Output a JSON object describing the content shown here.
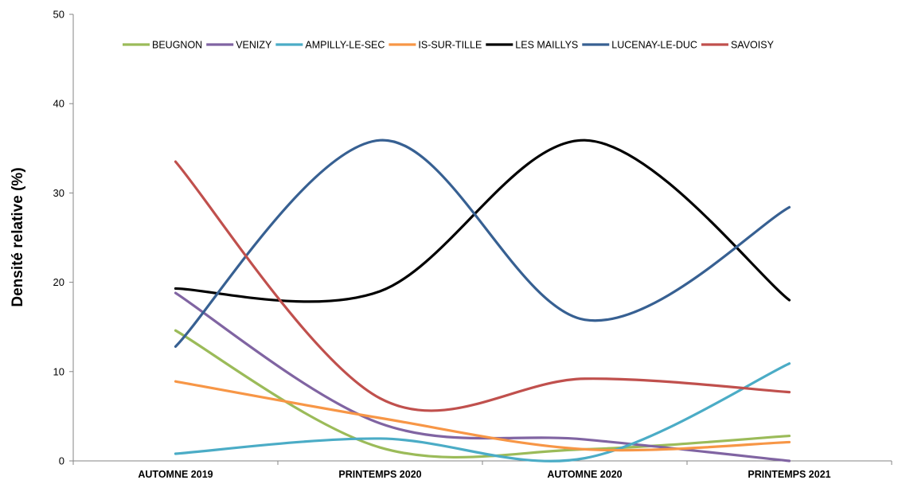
{
  "chart_data": {
    "type": "line",
    "smooth": true,
    "title": "",
    "xlabel": "",
    "ylabel": "Densité relative (%)",
    "ylim": [
      0,
      50
    ],
    "yticks": [
      0,
      10,
      20,
      30,
      40,
      50
    ],
    "grid": false,
    "legend_position": "top",
    "categories": [
      "AUTOMNE 2019",
      "PRINTEMPS 2020",
      "AUTOMNE 2020",
      "PRINTEMPS 2021"
    ],
    "series": [
      {
        "name": "BEUGNON",
        "color": "#9BBB59",
        "values": [
          14.6,
          1.5,
          1.3,
          2.8
        ]
      },
      {
        "name": "VENIZY",
        "color": "#8064A2",
        "values": [
          18.8,
          4.2,
          2.4,
          0.0
        ]
      },
      {
        "name": "AMPILLY-LE-SEC",
        "color": "#4BACC6",
        "values": [
          0.8,
          2.5,
          0.3,
          10.9
        ]
      },
      {
        "name": "IS-SUR-TILLE",
        "color": "#F79646",
        "values": [
          8.9,
          4.8,
          1.3,
          2.1
        ]
      },
      {
        "name": "LES MAILLYS",
        "color": "#000000",
        "values": [
          19.3,
          19.0,
          35.9,
          18.0
        ]
      },
      {
        "name": "LUCENAY-LE-DUC",
        "color": "#376092",
        "values": [
          12.8,
          35.9,
          15.8,
          28.4
        ]
      },
      {
        "name": "SAVOISY",
        "color": "#C0504D",
        "values": [
          33.5,
          7.0,
          9.2,
          7.7
        ]
      }
    ]
  }
}
